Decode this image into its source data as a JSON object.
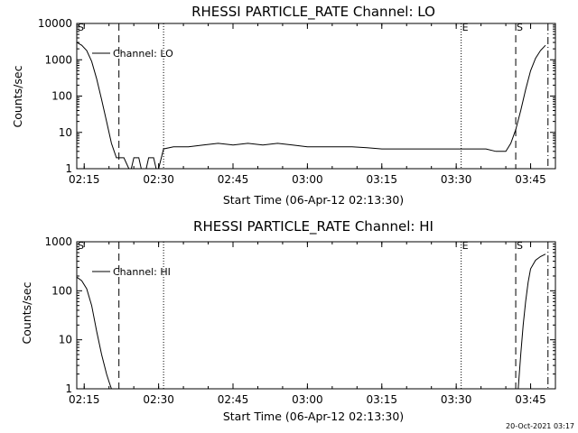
{
  "chart_data": [
    {
      "type": "line",
      "title": "RHESSI PARTICLE_RATE Channel: LO",
      "xlabel": "Start Time (06-Apr-12 02:13:30)",
      "ylabel": "Counts/sec",
      "yscale": "log",
      "xlim": [
        "02:13:30",
        "03:50:00"
      ],
      "ylim": [
        1,
        10000
      ],
      "x_ticks": [
        "02:15",
        "02:30",
        "02:45",
        "03:00",
        "03:15",
        "03:30",
        "03:45"
      ],
      "y_ticks": [
        "1",
        "10",
        "100",
        "1000",
        "10000"
      ],
      "legend": {
        "label": "Channel: LO",
        "position": "top-left"
      },
      "series": [
        {
          "name": "Channel: LO",
          "x": [
            "02:13:30",
            "02:14:30",
            "02:15:30",
            "02:16:30",
            "02:17:30",
            "02:18:30",
            "02:19:30",
            "02:20:30",
            "02:21:30",
            "02:22:00",
            "02:23:00",
            "02:24:00",
            "02:24:30",
            "02:25:00",
            "02:26:00",
            "02:26:30",
            "02:27:30",
            "02:28:00",
            "02:29:00",
            "02:29:30",
            "02:30:00",
            "02:31:00",
            "02:33:00",
            "02:36:00",
            "02:39:00",
            "02:42:00",
            "02:45:00",
            "02:48:00",
            "02:51:00",
            "02:54:00",
            "02:57:00",
            "03:00:00",
            "03:03:00",
            "03:06:00",
            "03:09:00",
            "03:12:00",
            "03:15:00",
            "03:18:00",
            "03:21:00",
            "03:24:00",
            "03:27:00",
            "03:30:00",
            "03:33:00",
            "03:36:00",
            "03:38:00",
            "03:39:00",
            "03:40:00",
            "03:41:00",
            "03:42:00",
            "03:43:00",
            "03:44:00",
            "03:45:00",
            "03:46:00",
            "03:47:00",
            "03:48:00"
          ],
          "values": [
            3000,
            2500,
            1800,
            900,
            300,
            80,
            20,
            5,
            2,
            2,
            2,
            1,
            1,
            2,
            2,
            1,
            1,
            2,
            2,
            1,
            1,
            3.5,
            4,
            4,
            4.5,
            5,
            4.5,
            5,
            4.5,
            5,
            4.5,
            4,
            4,
            4,
            4,
            3.8,
            3.5,
            3.5,
            3.5,
            3.5,
            3.5,
            3.5,
            3.5,
            3.5,
            3,
            3,
            3,
            5,
            12,
            40,
            150,
            500,
            1100,
            1800,
            2500
          ]
        }
      ],
      "markers": [
        {
          "label": "S",
          "time": "02:13:30",
          "style": "none"
        },
        {
          "time": "02:22:00",
          "style": "dashed"
        },
        {
          "time": "02:31:00",
          "style": "dotted"
        },
        {
          "label": "E",
          "time": "03:31:00",
          "style": "dotted"
        },
        {
          "label": "S",
          "time": "03:42:00",
          "style": "dashed"
        },
        {
          "time": "03:48:30",
          "style": "dash-dot"
        }
      ]
    },
    {
      "type": "line",
      "title": "RHESSI PARTICLE_RATE Channel: HI",
      "xlabel": "Start Time (06-Apr-12 02:13:30)",
      "ylabel": "Counts/sec",
      "yscale": "log",
      "xlim": [
        "02:13:30",
        "03:50:00"
      ],
      "ylim": [
        1,
        1000
      ],
      "x_ticks": [
        "02:15",
        "02:30",
        "02:45",
        "03:00",
        "03:15",
        "03:30",
        "03:45"
      ],
      "y_ticks": [
        "1",
        "10",
        "100",
        "1000"
      ],
      "legend": {
        "label": "Channel: HI",
        "position": "top-left"
      },
      "series": [
        {
          "name": "Channel: HI",
          "x": [
            "02:13:30",
            "02:14:30",
            "02:15:30",
            "02:16:30",
            "02:17:30",
            "02:18:30",
            "02:19:30",
            "02:20:00",
            "02:20:30",
            "02:21:00"
          ],
          "values": [
            190,
            160,
            110,
            50,
            15,
            5,
            2,
            1.4,
            1,
            1
          ],
          "extra_segments": [
            {
              "x": [
                "03:42:30",
                "03:43:00",
                "03:43:30",
                "03:44:00",
                "03:44:30",
                "03:45:00",
                "03:46:00",
                "03:47:00",
                "03:48:00"
              ],
              "values": [
                1,
                5,
                20,
                60,
                150,
                280,
                420,
                500,
                560
              ]
            }
          ]
        }
      ],
      "markers": [
        {
          "label": "S",
          "time": "02:13:30",
          "style": "none"
        },
        {
          "time": "02:22:00",
          "style": "dashed"
        },
        {
          "time": "02:31:00",
          "style": "dotted"
        },
        {
          "label": "E",
          "time": "03:31:00",
          "style": "dotted"
        },
        {
          "label": "S",
          "time": "03:42:00",
          "style": "dashed"
        },
        {
          "time": "03:48:30",
          "style": "dash-dot"
        }
      ]
    }
  ],
  "timestamp": "20-Oct-2021 03:17"
}
